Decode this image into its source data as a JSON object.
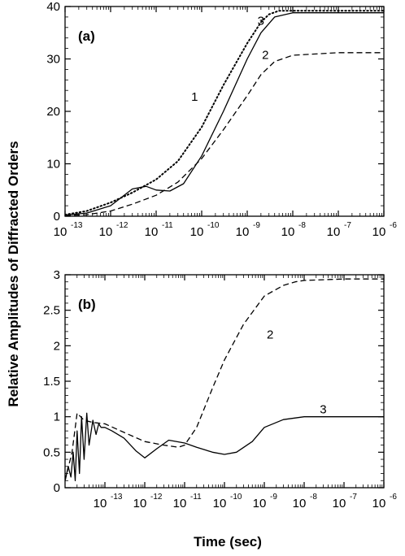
{
  "chart_data": [
    {
      "type": "line",
      "panel_label": "(a)",
      "x_scale": "log",
      "xlim": [
        1e-13,
        1e-06
      ],
      "ylim": [
        0,
        40
      ],
      "x_ticks": [
        {
          "base": "10",
          "exp": "-13",
          "value": 1e-13
        },
        {
          "base": "10",
          "exp": "-12",
          "value": 1e-12
        },
        {
          "base": "10",
          "exp": "-11",
          "value": 1e-11
        },
        {
          "base": "10",
          "exp": "-10",
          "value": 1e-10
        },
        {
          "base": "10",
          "exp": "-9",
          "value": 1e-09
        },
        {
          "base": "10",
          "exp": "-8",
          "value": 1e-08
        },
        {
          "base": "10",
          "exp": "-7",
          "value": 1e-07
        },
        {
          "base": "10",
          "exp": "-6",
          "value": 1e-06
        }
      ],
      "y_ticks": [
        "0",
        "10",
        "20",
        "30",
        "40"
      ],
      "series": [
        {
          "name": "1",
          "style": "dotted",
          "x": [
            1e-13,
            3e-13,
            1e-12,
            3e-12,
            1e-11,
            3e-11,
            1e-10,
            3e-10,
            1e-09,
            2e-09,
            3e-09,
            5e-09,
            1e-08,
            1e-07,
            1e-06
          ],
          "y": [
            0.3,
            1.0,
            2.6,
            4.5,
            7.0,
            10.5,
            17.0,
            25.0,
            33.0,
            37.0,
            38.5,
            39.2,
            39.2,
            39.2,
            39.2
          ]
        },
        {
          "name": "2",
          "style": "dashed",
          "x": [
            1e-13,
            3e-13,
            1e-12,
            3e-12,
            1e-11,
            3e-11,
            1e-10,
            3e-10,
            1e-09,
            2e-09,
            4e-09,
            1e-08,
            1e-07,
            1e-06
          ],
          "y": [
            0.1,
            0.3,
            1.0,
            2.3,
            4.0,
            6.5,
            11.0,
            16.5,
            23.0,
            27.0,
            29.5,
            30.7,
            31.2,
            31.2
          ]
        },
        {
          "name": "3",
          "style": "solid",
          "x": [
            1e-13,
            3e-13,
            1e-12,
            3e-12,
            6e-12,
            1e-11,
            2e-11,
            4e-11,
            1e-10,
            3e-10,
            1e-09,
            2e-09,
            4e-09,
            1e-08,
            1e-07,
            1e-06
          ],
          "y": [
            0.2,
            0.6,
            2.0,
            5.2,
            5.7,
            5.0,
            4.8,
            6.2,
            11.5,
            20.0,
            30.0,
            35.0,
            38.0,
            38.8,
            38.8,
            38.8
          ]
        }
      ],
      "annotations": [
        {
          "text": "1",
          "x": 7e-11,
          "y": 22
        },
        {
          "text": "3",
          "x": 2e-09,
          "y": 36.5
        },
        {
          "text": "2",
          "x": 2.5e-09,
          "y": 30
        }
      ]
    },
    {
      "type": "line",
      "panel_label": "(b)",
      "x_scale": "log",
      "xlim": [
        1e-14,
        1e-06
      ],
      "ylim": [
        0,
        3
      ],
      "x_ticks": [
        {
          "base": "10",
          "exp": "-13",
          "value": 1e-13
        },
        {
          "base": "10",
          "exp": "-12",
          "value": 1e-12
        },
        {
          "base": "10",
          "exp": "-11",
          "value": 1e-11
        },
        {
          "base": "10",
          "exp": "-10",
          "value": 1e-10
        },
        {
          "base": "10",
          "exp": "-9",
          "value": 1e-09
        },
        {
          "base": "10",
          "exp": "-8",
          "value": 1e-08
        },
        {
          "base": "10",
          "exp": "-7",
          "value": 1e-07
        },
        {
          "base": "10",
          "exp": "-6",
          "value": 1e-06
        }
      ],
      "y_ticks": [
        "0",
        "0.5",
        "1",
        "1.5",
        "2",
        "2.5",
        "3"
      ],
      "series": [
        {
          "name": "2",
          "style": "dashed",
          "x": [
            1e-14,
            1.5e-14,
            2e-14,
            3e-14,
            5e-14,
            1e-13,
            3e-13,
            1e-12,
            3e-12,
            7e-12,
            1e-11,
            2e-11,
            5e-11,
            1e-10,
            3e-10,
            1e-09,
            3e-09,
            6e-09,
            1e-08,
            1e-07,
            1e-06
          ],
          "y": [
            0.1,
            0.5,
            1.05,
            0.95,
            0.92,
            0.9,
            0.78,
            0.65,
            0.6,
            0.57,
            0.6,
            0.85,
            1.4,
            1.8,
            2.3,
            2.7,
            2.85,
            2.9,
            2.92,
            2.94,
            2.94
          ]
        },
        {
          "name": "3",
          "style": "solid",
          "x": [
            1e-14,
            1.2e-14,
            1.4e-14,
            1.6e-14,
            1.8e-14,
            2e-14,
            2.3e-14,
            2.6e-14,
            3e-14,
            3.5e-14,
            4e-14,
            5e-14,
            6e-14,
            7e-14,
            8e-14,
            1e-13,
            1.5e-13,
            3e-13,
            6e-13,
            1e-12,
            2e-12,
            4e-12,
            1e-11,
            2e-11,
            5e-11,
            1e-10,
            2e-10,
            5e-10,
            1e-09,
            3e-09,
            1e-08,
            1e-07,
            1e-06
          ],
          "y": [
            0.1,
            0.3,
            0.15,
            0.5,
            0.1,
            0.8,
            0.2,
            1.0,
            0.4,
            1.05,
            0.6,
            0.95,
            0.75,
            0.9,
            0.85,
            0.85,
            0.8,
            0.7,
            0.52,
            0.42,
            0.55,
            0.67,
            0.63,
            0.57,
            0.5,
            0.47,
            0.5,
            0.65,
            0.85,
            0.96,
            1.0,
            1.0,
            1.0
          ]
        }
      ],
      "annotations": [
        {
          "text": "2",
          "x": 1.4e-09,
          "y": 2.1
        },
        {
          "text": "3",
          "x": 3e-08,
          "y": 1.05
        }
      ]
    }
  ],
  "ylabel": "Relative Amplitudes of Diffracted Orders",
  "xlabel": "Time (sec)"
}
